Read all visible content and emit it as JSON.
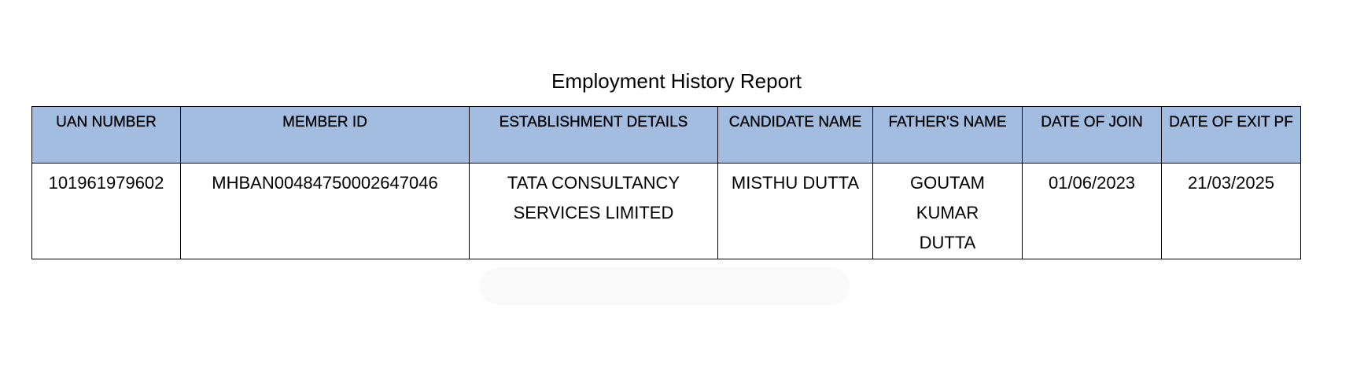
{
  "title": "Employment History Report",
  "table": {
    "headers": [
      "UAN NUMBER",
      "MEMBER ID",
      "ESTABLISHMENT DETAILS",
      "CANDIDATE NAME",
      "FATHER'S NAME",
      "DATE OF JOIN",
      "DATE OF EXIT PF"
    ],
    "rows": [
      [
        "101961979602",
        "MHBAN00484750002647046",
        "TATA CONSULTANCY SERVICES LIMITED",
        "MISTHU DUTTA",
        "GOUTAM KUMAR DUTTA",
        "01/06/2023",
        "21/03/2025"
      ]
    ]
  },
  "colors": {
    "header_bg": "#a3bde0",
    "border": "#000000"
  }
}
